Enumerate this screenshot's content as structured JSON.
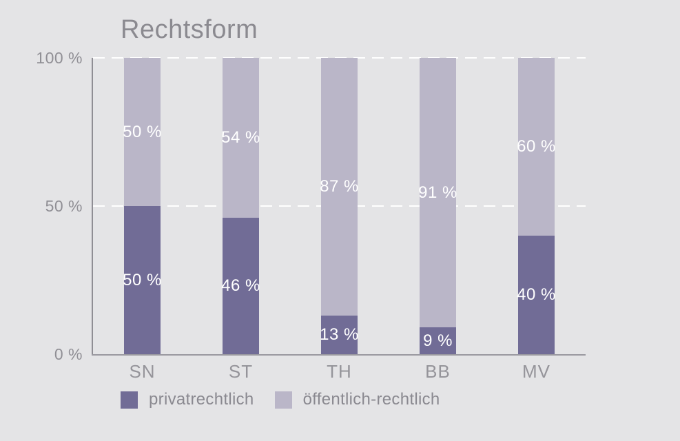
{
  "title": "Rechtsform",
  "colors": {
    "background": "#e4e4e6",
    "title_text": "#8b8a90",
    "tick_text": "#908f95",
    "category_text": "#95949a",
    "legend_text": "#8a8990",
    "axis_line": "#8f8e94",
    "baseline": "#9a99a0",
    "gridline": "#ffffff",
    "value_label": "#ffffff"
  },
  "chart_data": {
    "type": "bar",
    "stacked": true,
    "title": "Rechtsform",
    "categories": [
      "SN",
      "ST",
      "TH",
      "BB",
      "MV"
    ],
    "series": [
      {
        "name": "privatrechtlich",
        "color": "#716c96",
        "values": [
          50,
          46,
          13,
          9,
          40
        ]
      },
      {
        "name": "öffentlich-rechtlich",
        "color": "#bab6c8",
        "values": [
          50,
          54,
          87,
          91,
          60
        ]
      }
    ],
    "value_suffix": " %",
    "y_ticks": [
      {
        "label": "100 %",
        "value": 100
      },
      {
        "label": "50 %",
        "value": 50
      },
      {
        "label": "0 %",
        "value": 0
      }
    ],
    "gridline_values": [
      100,
      50
    ],
    "ylim": [
      0,
      100
    ],
    "grid": "dashed-white",
    "legend_position": "bottom"
  }
}
